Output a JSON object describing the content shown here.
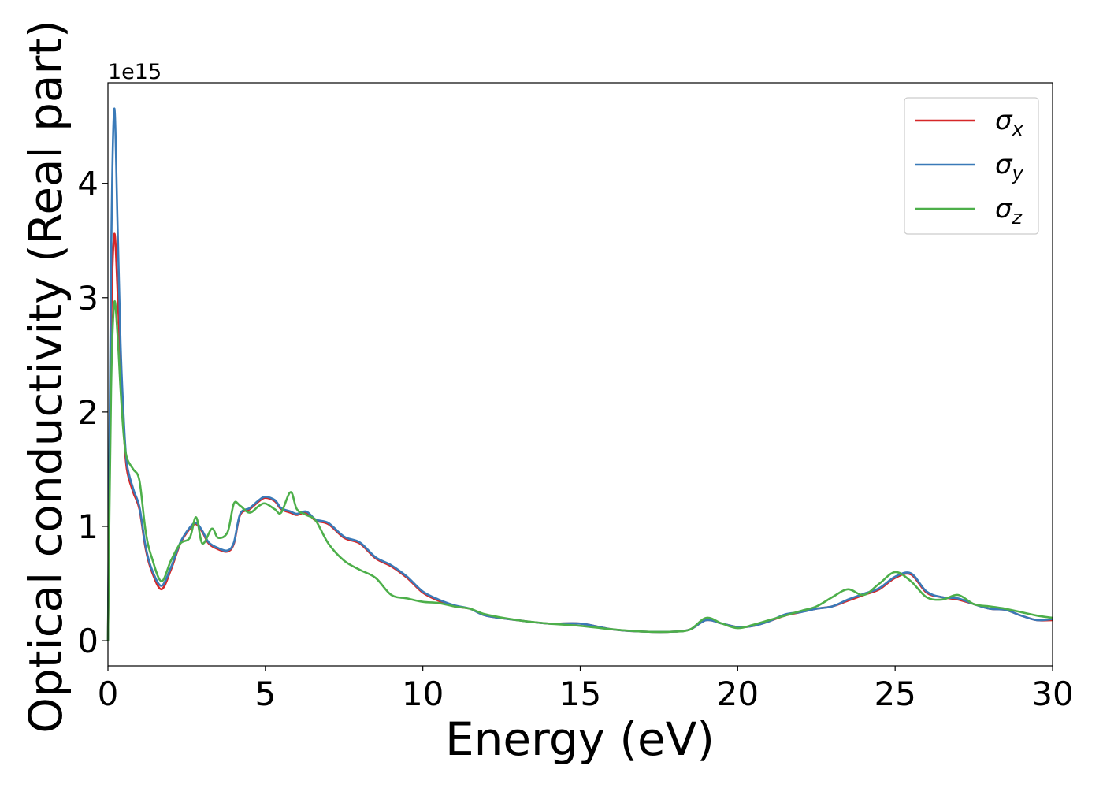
{
  "chart_data": {
    "type": "line",
    "title": "",
    "xlabel": "Energy (eV)",
    "ylabel": "Optical conductivity (Real part)",
    "y_offset_label": "1e15",
    "y_scale_factor": 1000000000000000.0,
    "xlim": [
      0,
      30
    ],
    "ylim": [
      -0.22,
      4.88
    ],
    "x_ticks": [
      0,
      5,
      10,
      15,
      20,
      25,
      30
    ],
    "x_tick_labels": [
      "0",
      "5",
      "10",
      "15",
      "20",
      "25",
      "30"
    ],
    "y_ticks": [
      0,
      1,
      2,
      3,
      4
    ],
    "y_tick_labels": [
      "0",
      "1",
      "2",
      "3",
      "4"
    ],
    "grid": false,
    "legend_position": "top-right",
    "series": [
      {
        "name": "σx",
        "name_base": "σ",
        "name_sub": "x",
        "color": "#d62728",
        "x": [
          0,
          0.1,
          0.2,
          0.3,
          0.4,
          0.5,
          0.6,
          0.8,
          1.0,
          1.2,
          1.4,
          1.7,
          2.0,
          2.3,
          2.6,
          2.8,
          3.0,
          3.2,
          3.5,
          3.8,
          4.0,
          4.2,
          4.5,
          4.8,
          5.0,
          5.3,
          5.5,
          5.8,
          6.0,
          6.3,
          6.6,
          7.0,
          7.5,
          8.0,
          8.5,
          9.0,
          9.5,
          10.0,
          10.5,
          11.0,
          11.5,
          12.0,
          13.0,
          14.0,
          15.0,
          16.0,
          17.0,
          18.0,
          18.5,
          19.0,
          19.5,
          20.0,
          20.5,
          21.0,
          21.5,
          22.0,
          22.5,
          23.0,
          23.5,
          24.0,
          24.5,
          25.0,
          25.5,
          26.0,
          26.5,
          27.0,
          27.5,
          28.0,
          28.5,
          29.0,
          29.5,
          30.0
        ],
        "y": [
          0.0,
          2.7,
          3.55,
          3.1,
          2.4,
          1.85,
          1.5,
          1.3,
          1.15,
          0.8,
          0.6,
          0.45,
          0.62,
          0.85,
          0.98,
          1.02,
          0.95,
          0.85,
          0.8,
          0.78,
          0.85,
          1.1,
          1.15,
          1.22,
          1.25,
          1.22,
          1.15,
          1.12,
          1.1,
          1.12,
          1.05,
          1.02,
          0.9,
          0.85,
          0.72,
          0.65,
          0.55,
          0.42,
          0.35,
          0.3,
          0.28,
          0.22,
          0.18,
          0.15,
          0.15,
          0.1,
          0.08,
          0.08,
          0.1,
          0.18,
          0.15,
          0.12,
          0.13,
          0.17,
          0.22,
          0.25,
          0.28,
          0.3,
          0.35,
          0.4,
          0.45,
          0.55,
          0.58,
          0.42,
          0.38,
          0.36,
          0.32,
          0.28,
          0.27,
          0.22,
          0.18,
          0.18
        ]
      },
      {
        "name": "σy",
        "name_base": "σ",
        "name_sub": "y",
        "color": "#3a7ab8",
        "x": [
          0,
          0.1,
          0.2,
          0.3,
          0.4,
          0.5,
          0.6,
          0.8,
          1.0,
          1.2,
          1.4,
          1.7,
          2.0,
          2.3,
          2.6,
          2.8,
          3.0,
          3.2,
          3.5,
          3.8,
          4.0,
          4.2,
          4.5,
          4.8,
          5.0,
          5.3,
          5.5,
          5.8,
          6.0,
          6.3,
          6.6,
          7.0,
          7.5,
          8.0,
          8.5,
          9.0,
          9.5,
          10.0,
          10.5,
          11.0,
          11.5,
          12.0,
          13.0,
          14.0,
          15.0,
          16.0,
          17.0,
          18.0,
          18.5,
          19.0,
          19.5,
          20.0,
          20.5,
          21.0,
          21.5,
          22.0,
          22.5,
          23.0,
          23.5,
          24.0,
          24.5,
          25.0,
          25.5,
          26.0,
          26.5,
          27.0,
          27.5,
          28.0,
          28.5,
          29.0,
          29.5,
          30.0
        ],
        "y": [
          0.0,
          3.3,
          4.65,
          3.7,
          2.6,
          1.95,
          1.55,
          1.33,
          1.17,
          0.82,
          0.62,
          0.48,
          0.64,
          0.86,
          0.99,
          1.03,
          0.96,
          0.86,
          0.81,
          0.79,
          0.86,
          1.11,
          1.16,
          1.23,
          1.26,
          1.23,
          1.16,
          1.13,
          1.11,
          1.13,
          1.06,
          1.03,
          0.91,
          0.86,
          0.73,
          0.66,
          0.56,
          0.43,
          0.36,
          0.31,
          0.28,
          0.22,
          0.18,
          0.15,
          0.15,
          0.1,
          0.08,
          0.08,
          0.1,
          0.18,
          0.15,
          0.12,
          0.13,
          0.17,
          0.23,
          0.25,
          0.28,
          0.3,
          0.36,
          0.41,
          0.46,
          0.56,
          0.59,
          0.43,
          0.38,
          0.37,
          0.32,
          0.28,
          0.27,
          0.22,
          0.18,
          0.19
        ]
      },
      {
        "name": "σz",
        "name_base": "σ",
        "name_sub": "z",
        "color": "#4daf4a",
        "x": [
          0,
          0.1,
          0.2,
          0.3,
          0.4,
          0.5,
          0.6,
          0.8,
          1.0,
          1.2,
          1.4,
          1.7,
          2.0,
          2.3,
          2.6,
          2.8,
          3.0,
          3.3,
          3.5,
          3.8,
          4.0,
          4.2,
          4.5,
          4.8,
          5.0,
          5.3,
          5.5,
          5.8,
          6.0,
          6.3,
          6.6,
          7.0,
          7.5,
          8.0,
          8.5,
          9.0,
          9.5,
          10.0,
          10.5,
          11.0,
          11.5,
          12.0,
          13.0,
          14.0,
          15.0,
          16.0,
          17.0,
          18.0,
          18.5,
          19.0,
          19.5,
          20.0,
          20.5,
          21.0,
          21.5,
          22.0,
          22.5,
          23.0,
          23.5,
          24.0,
          24.5,
          25.0,
          25.5,
          26.0,
          26.5,
          27.0,
          27.5,
          28.0,
          28.5,
          29.0,
          29.5,
          30.0
        ],
        "y": [
          0.0,
          2.2,
          2.95,
          2.7,
          2.2,
          1.8,
          1.6,
          1.5,
          1.4,
          0.95,
          0.72,
          0.52,
          0.7,
          0.85,
          0.9,
          1.08,
          0.85,
          0.98,
          0.9,
          0.95,
          1.2,
          1.18,
          1.12,
          1.18,
          1.2,
          1.15,
          1.12,
          1.3,
          1.15,
          1.1,
          1.05,
          0.85,
          0.7,
          0.62,
          0.55,
          0.4,
          0.37,
          0.34,
          0.33,
          0.3,
          0.28,
          0.23,
          0.18,
          0.15,
          0.13,
          0.1,
          0.08,
          0.08,
          0.1,
          0.2,
          0.15,
          0.11,
          0.14,
          0.18,
          0.22,
          0.26,
          0.3,
          0.38,
          0.45,
          0.4,
          0.5,
          0.6,
          0.52,
          0.38,
          0.36,
          0.4,
          0.32,
          0.3,
          0.28,
          0.25,
          0.22,
          0.2
        ]
      }
    ]
  }
}
